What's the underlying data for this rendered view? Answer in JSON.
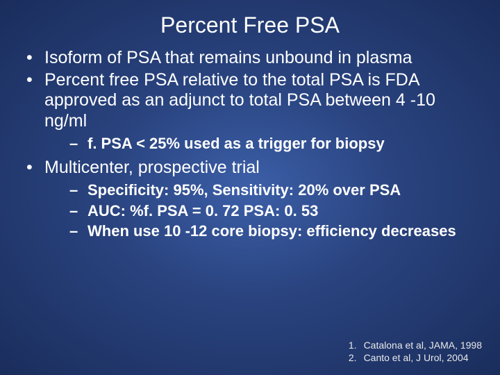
{
  "title": "Percent Free PSA",
  "bullets": {
    "b1": "Isoform of PSA that remains unbound in plasma",
    "b2": "Percent free PSA relative to the total PSA is FDA approved as an adjunct to total PSA between 4 -10 ng/ml",
    "b2_sub1": "f. PSA < 25% used as a trigger for biopsy",
    "b3": "Multicenter, prospective trial",
    "b3_sub1": "Specificity:  95%, Sensitivity:  20% over PSA",
    "b3_sub2": "AUC:  %f. PSA = 0. 72           PSA:  0. 53",
    "b3_sub3": "When use 10 -12 core biopsy:  efficiency decreases"
  },
  "refs": {
    "r1_num": "1.",
    "r1_text": "Catalona et al, JAMA, 1998",
    "r2_num": "2.",
    "r2_text": "Canto et al, J Urol, 2004"
  },
  "style": {
    "background_center": "#3c5fa8",
    "background_mid": "#2a4480",
    "background_edge": "#1a2d5c",
    "text_color": "#ffffff",
    "title_fontsize": 32,
    "bullet_fontsize": 25,
    "subbullet_fontsize": 22,
    "ref_fontsize": 14
  }
}
